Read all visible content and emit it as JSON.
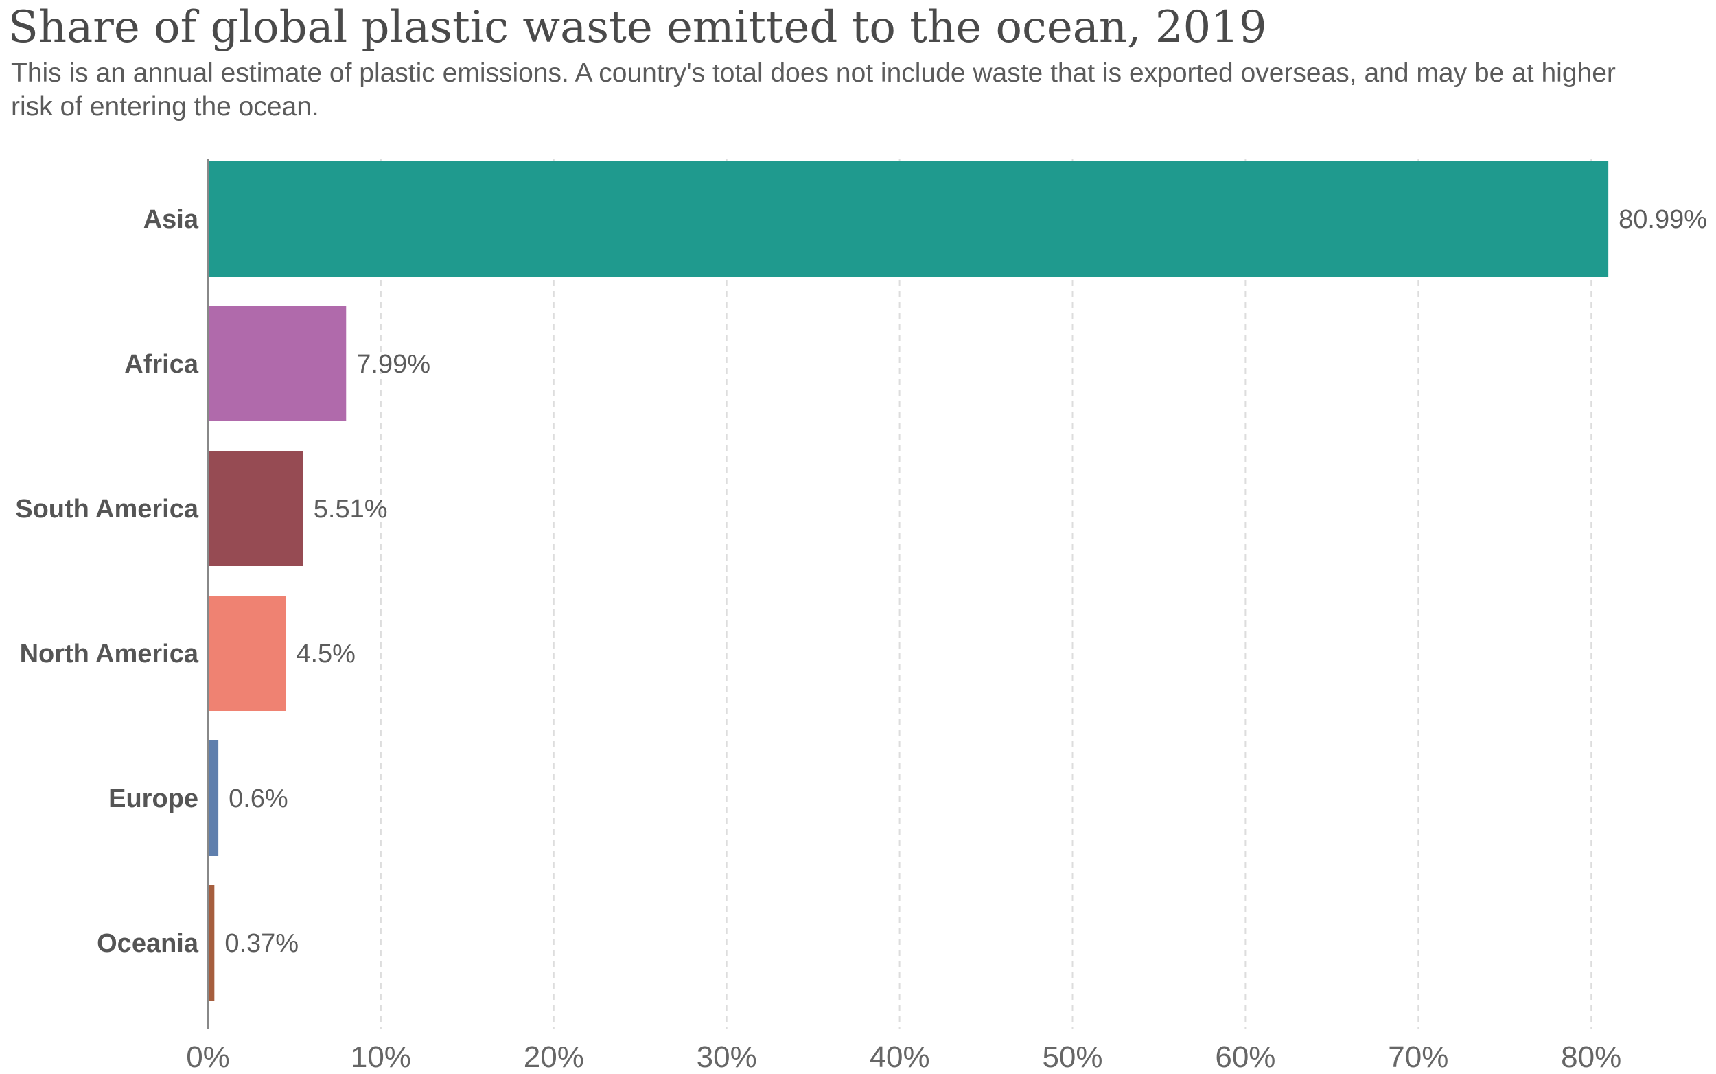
{
  "title": "Share of global plastic waste emitted to the ocean, 2019",
  "subtitle": "This is an annual estimate of plastic emissions. A country's total does not include waste that is exported overseas, and may be at higher risk of entering the ocean.",
  "chart_data": {
    "type": "bar",
    "orientation": "horizontal",
    "categories": [
      "Asia",
      "Africa",
      "South America",
      "North America",
      "Europe",
      "Oceania"
    ],
    "values": [
      80.99,
      7.99,
      5.51,
      4.5,
      0.6,
      0.37
    ],
    "value_labels": [
      "80.99%",
      "7.99%",
      "5.51%",
      "4.5%",
      "0.6%",
      "0.37%"
    ],
    "colors": [
      "#1f9a8e",
      "#b06aab",
      "#964b53",
      "#ef8272",
      "#5f7fad",
      "#a65e3e"
    ],
    "xticks": [
      0,
      10,
      20,
      30,
      40,
      50,
      60,
      70,
      80
    ],
    "xtick_labels": [
      "0%",
      "10%",
      "20%",
      "30%",
      "40%",
      "50%",
      "60%",
      "70%",
      "80%"
    ],
    "xlim": [
      0,
      80
    ],
    "grid": "vertical dashed",
    "legend": "none"
  }
}
